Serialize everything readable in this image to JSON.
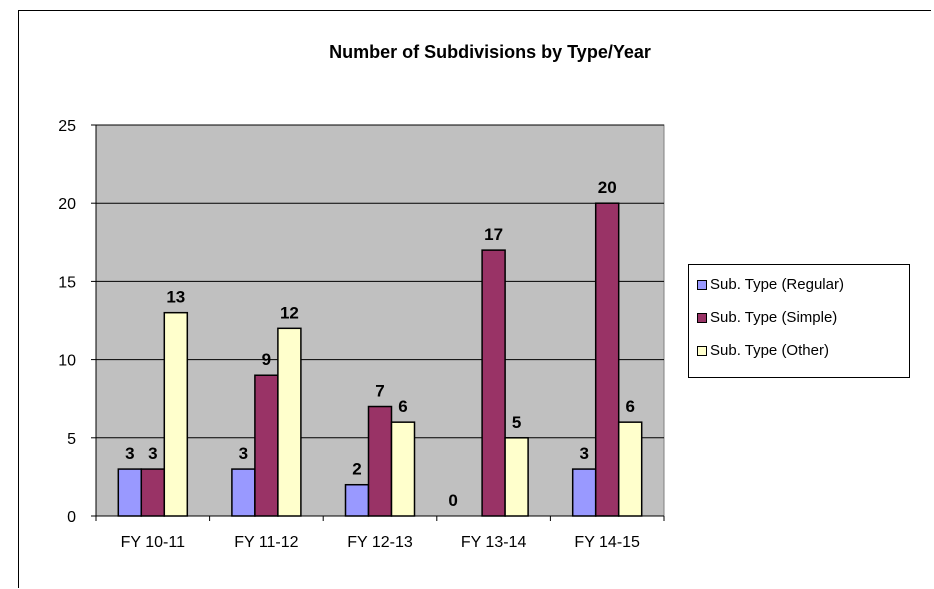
{
  "chart_data": {
    "type": "bar",
    "title": "Number of Subdivisions by Type/Year",
    "categories": [
      "FY 10-11",
      "FY 11-12",
      "FY 12-13",
      "FY 13-14",
      "FY 14-15"
    ],
    "series": [
      {
        "name": "Sub. Type (Regular)",
        "values": [
          3,
          3,
          2,
          0,
          3
        ],
        "color": "#9999ff"
      },
      {
        "name": "Sub. Type (Simple)",
        "values": [
          3,
          9,
          7,
          17,
          20
        ],
        "color": "#993366"
      },
      {
        "name": "Sub. Type (Other)",
        "values": [
          13,
          12,
          6,
          5,
          6
        ],
        "color": "#ffffcc"
      }
    ],
    "ylim": [
      0,
      25
    ],
    "yticks": [
      0,
      5,
      10,
      15,
      20,
      25
    ],
    "grid": true,
    "plot_background": "#c0c0c0",
    "legend_position": "right",
    "data_labels": true,
    "xlabel": "",
    "ylabel": ""
  }
}
